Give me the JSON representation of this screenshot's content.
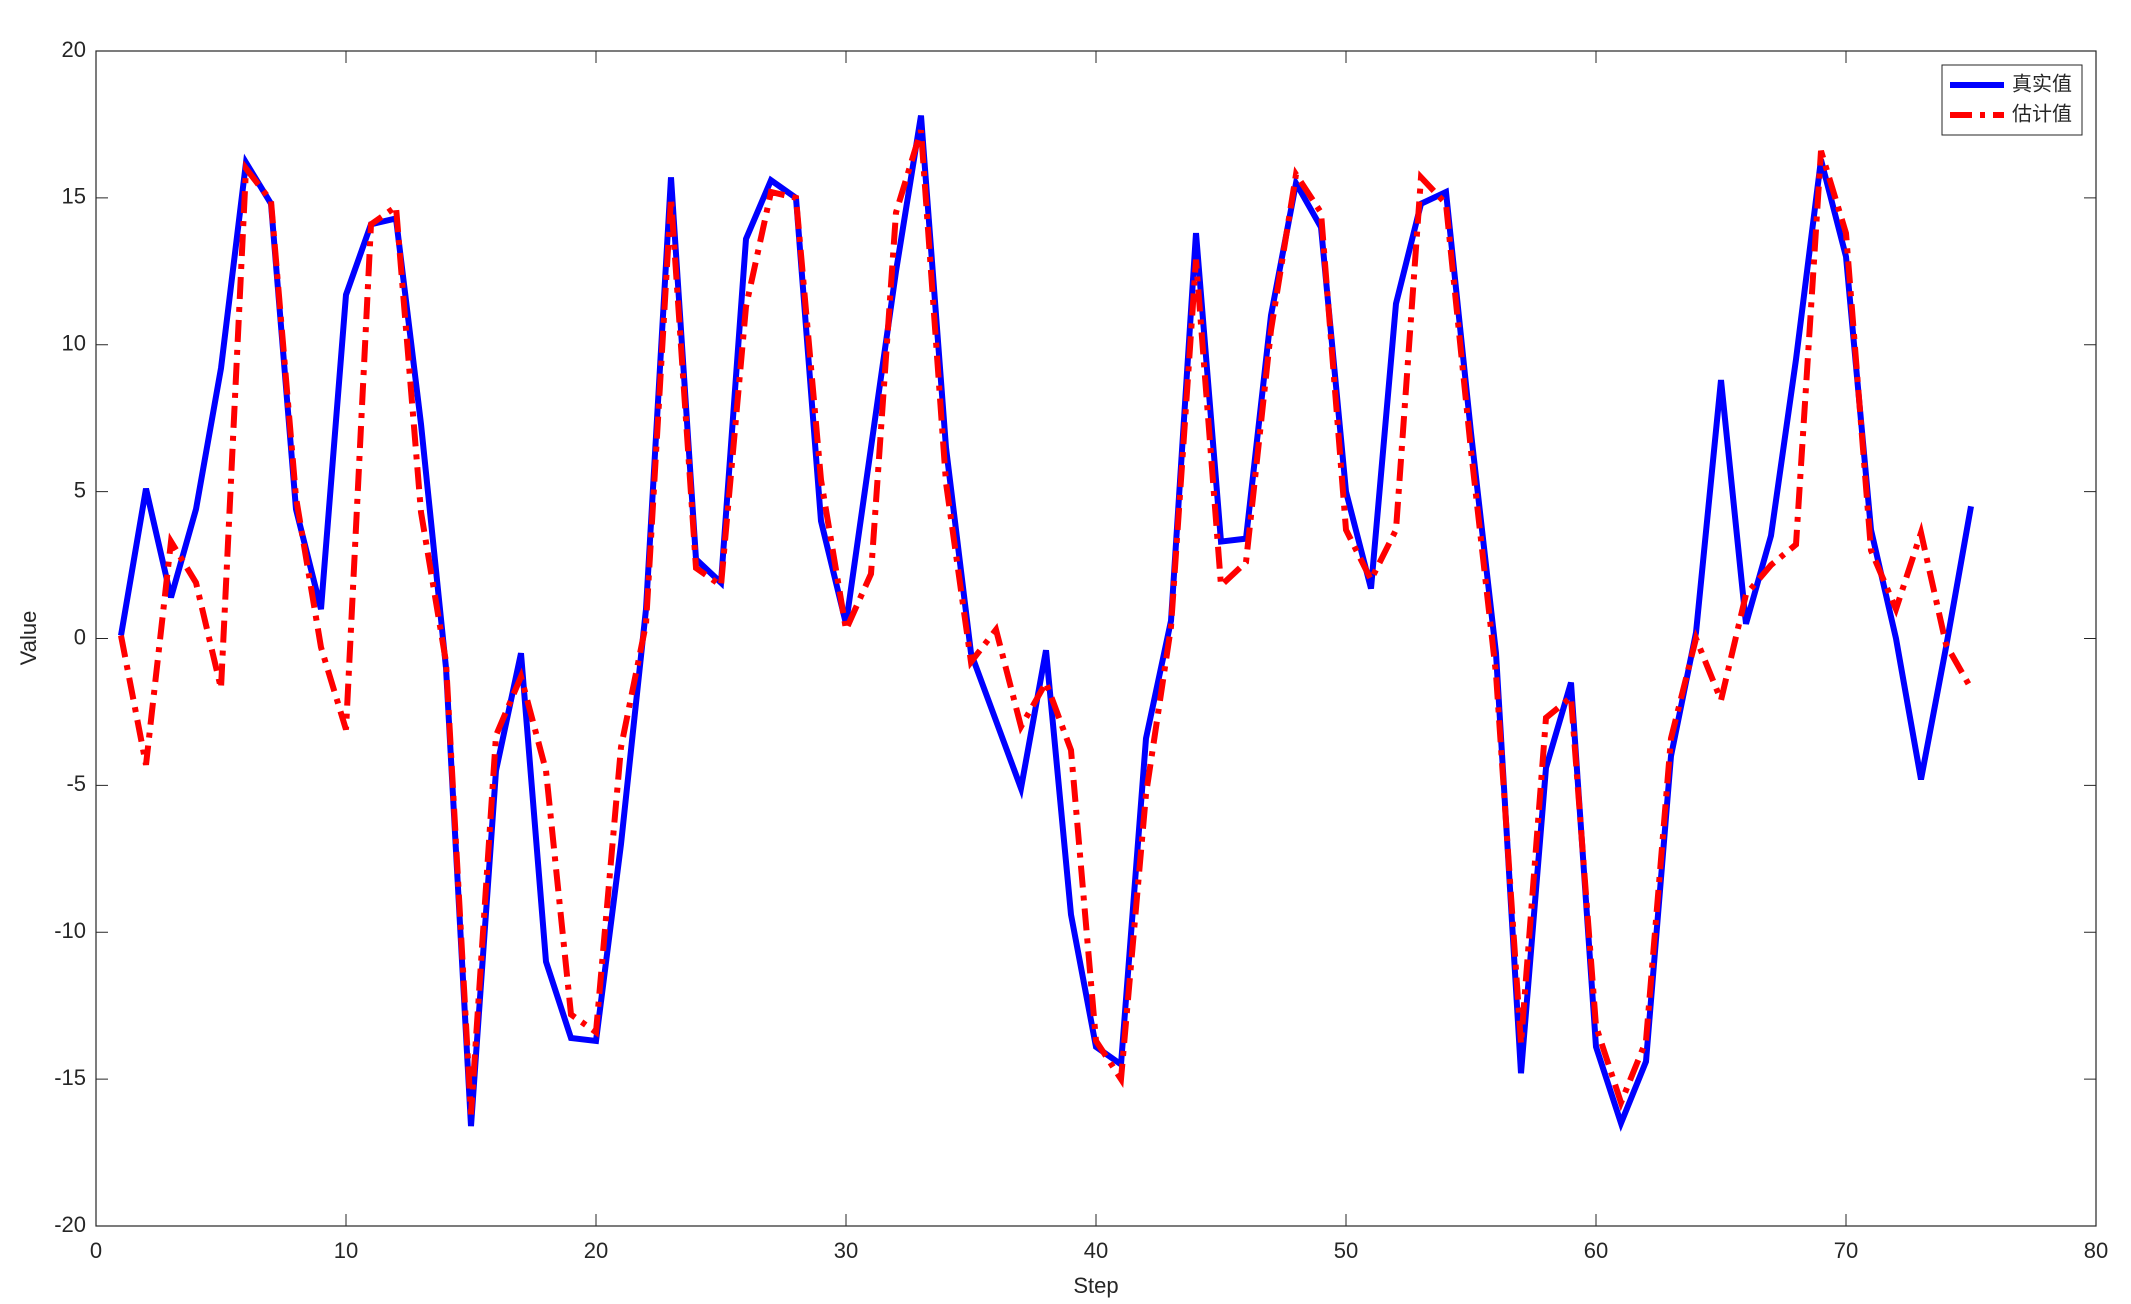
{
  "chart_data": {
    "type": "line",
    "x_label": "Step",
    "y_label": "Value",
    "x": [
      1,
      2,
      3,
      4,
      5,
      6,
      7,
      8,
      9,
      10,
      11,
      12,
      13,
      14,
      15,
      16,
      17,
      18,
      19,
      20,
      21,
      22,
      23,
      24,
      25,
      26,
      27,
      28,
      29,
      30,
      31,
      32,
      33,
      34,
      35,
      36,
      37,
      38,
      39,
      40,
      41,
      42,
      43,
      44,
      45,
      46,
      47,
      48,
      49,
      50,
      51,
      52,
      53,
      54,
      55,
      56,
      57,
      58,
      59,
      60,
      61,
      62,
      63,
      64,
      65,
      66,
      67,
      68,
      69,
      70,
      71,
      72,
      73,
      74,
      75
    ],
    "series": [
      {
        "name": "真实值",
        "color": "#0000ff",
        "dash": "solid",
        "values": [
          0.1,
          5.1,
          1.4,
          4.4,
          9.2,
          16.2,
          14.8,
          4.4,
          1.0,
          11.7,
          14.1,
          14.3,
          7.3,
          -1.0,
          -16.6,
          -4.5,
          -0.5,
          -11.0,
          -13.6,
          -13.7,
          -7.0,
          1.0,
          15.7,
          2.7,
          1.9,
          13.6,
          15.6,
          15.0,
          4.0,
          0.5,
          6.5,
          12.5,
          17.8,
          6.5,
          -0.5,
          -2.8,
          -5.1,
          -0.4,
          -9.4,
          -13.9,
          -14.5,
          -3.4,
          0.6,
          13.8,
          3.3,
          3.4,
          11.0,
          15.5,
          14.0,
          5.0,
          1.7,
          11.4,
          14.8,
          15.2,
          7.0,
          -0.5,
          -14.8,
          -4.4,
          -1.5,
          -13.9,
          -16.5,
          -14.4,
          -4.0,
          0.2,
          8.8,
          0.5,
          3.5,
          9.5,
          16.3,
          13.0,
          3.7,
          0.0,
          -4.8,
          -0.3,
          4.5
        ]
      },
      {
        "name": "估计值",
        "color": "#ff0000",
        "dash": "dashdot",
        "values": [
          0.1,
          -4.3,
          3.3,
          1.9,
          -1.7,
          16.0,
          14.9,
          4.8,
          -0.3,
          -3.1,
          14.1,
          14.7,
          4.3,
          -0.8,
          -16.2,
          -3.3,
          -1.3,
          -4.5,
          -12.8,
          -13.4,
          -3.7,
          0.5,
          15.0,
          2.4,
          1.8,
          11.3,
          15.2,
          15.0,
          5.4,
          0.3,
          2.2,
          14.5,
          17.3,
          5.3,
          -0.8,
          0.3,
          -3.0,
          -1.5,
          -3.8,
          -13.7,
          -15.0,
          -5.3,
          0.4,
          12.9,
          1.8,
          2.6,
          10.5,
          15.8,
          14.5,
          3.7,
          2.0,
          3.7,
          15.7,
          14.8,
          6.4,
          -1.2,
          -13.8,
          -2.7,
          -2.0,
          -13.2,
          -15.8,
          -13.7,
          -3.4,
          0.0,
          -2.1,
          1.5,
          2.5,
          3.2,
          16.6,
          13.8,
          3.0,
          1.0,
          3.6,
          -0.2,
          -1.7
        ]
      }
    ],
    "xlim": [
      0,
      80
    ],
    "xticks": [
      0,
      10,
      20,
      30,
      40,
      50,
      60,
      70,
      80
    ],
    "ylim": [
      -20,
      20
    ],
    "yticks": [
      -20,
      -15,
      -10,
      -5,
      0,
      5,
      10,
      15,
      20
    ],
    "legend": "top-right",
    "grid": false
  }
}
